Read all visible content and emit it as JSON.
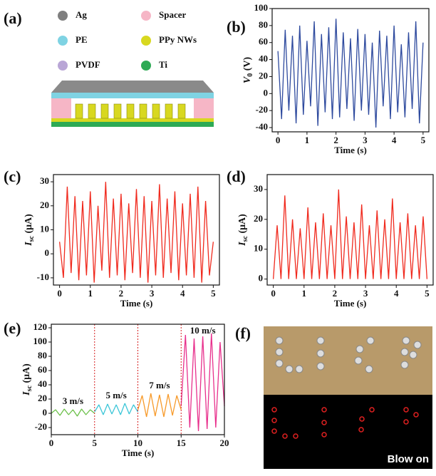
{
  "panels": [
    "(a)",
    "(b)",
    "(c)",
    "(d)",
    "(e)",
    "(f)"
  ],
  "diagram": {
    "legend": [
      {
        "label": "Ag",
        "color": "#7f7f7f"
      },
      {
        "label": "PE",
        "color": "#7fd3e3"
      },
      {
        "label": "PVDF",
        "color": "#b9a6d6"
      },
      {
        "label": "Spacer",
        "color": "#f6b6c6"
      },
      {
        "label": "PPy NWs",
        "color": "#d8d820"
      },
      {
        "label": "Ti",
        "color": "#2eaa55"
      }
    ]
  },
  "photo": {
    "caption": "Blow on"
  },
  "chart_data": [
    {
      "type": "line",
      "x_label": "Time (s)",
      "y_label": "V",
      "y_label_sub": "0",
      "y_label_unit": " (V)",
      "xlim": [
        -0.2,
        5.2
      ],
      "xticks": [
        0,
        1,
        2,
        3,
        4,
        5
      ],
      "ylim": [
        -45,
        100
      ],
      "yticks": [
        -40,
        -20,
        0,
        20,
        40,
        60,
        80,
        100
      ],
      "x": [
        0,
        0.125,
        0.25,
        0.375,
        0.5,
        0.625,
        0.75,
        0.875,
        1,
        1.125,
        1.25,
        1.375,
        1.5,
        1.625,
        1.75,
        1.875,
        2,
        2.125,
        2.25,
        2.375,
        2.5,
        2.625,
        2.75,
        2.875,
        3,
        3.125,
        3.25,
        3.375,
        3.5,
        3.625,
        3.75,
        3.875,
        4,
        4.125,
        4.25,
        4.375,
        4.5,
        4.625,
        4.75,
        4.875,
        5
      ],
      "series": [
        {
          "color": "#2e4a9e",
          "values": [
            50,
            -30,
            75,
            -20,
            68,
            -35,
            80,
            -25,
            62,
            -15,
            85,
            -38,
            70,
            -22,
            78,
            -30,
            88,
            -28,
            72,
            -18,
            65,
            -32,
            76,
            -20,
            70,
            -25,
            60,
            -40,
            74,
            -15,
            68,
            -30,
            80,
            -22,
            58,
            -28,
            72,
            -18,
            85,
            -35,
            60
          ]
        }
      ]
    },
    {
      "type": "line",
      "x_label": "Time (s)",
      "y_label": "I",
      "y_label_sub": "sc",
      "y_label_unit": " (μA)",
      "xlim": [
        -0.2,
        5.2
      ],
      "xticks": [
        0,
        1,
        2,
        3,
        4,
        5
      ],
      "ylim": [
        -13,
        33
      ],
      "yticks": [
        -10,
        0,
        10,
        20,
        30
      ],
      "x": [
        0,
        0.125,
        0.25,
        0.375,
        0.5,
        0.625,
        0.75,
        0.875,
        1,
        1.125,
        1.25,
        1.375,
        1.5,
        1.625,
        1.75,
        1.875,
        2,
        2.125,
        2.25,
        2.375,
        2.5,
        2.625,
        2.75,
        2.875,
        3,
        3.125,
        3.25,
        3.375,
        3.5,
        3.625,
        3.75,
        3.875,
        4,
        4.125,
        4.25,
        4.375,
        4.5,
        4.625,
        4.75,
        4.875,
        5
      ],
      "series": [
        {
          "color": "#f02a1e",
          "values": [
            5,
            -10,
            28,
            -8,
            24,
            -11,
            22,
            -9,
            26,
            -12,
            20,
            -7,
            30,
            -10,
            23,
            -9,
            25,
            -11,
            21,
            -8,
            27,
            -10,
            24,
            -12,
            22,
            -9,
            29,
            -10,
            23,
            -8,
            26,
            -11,
            21,
            -9,
            25,
            -10,
            28,
            -12,
            22,
            -9,
            5
          ]
        }
      ]
    },
    {
      "type": "line",
      "x_label": "Time (s)",
      "y_label": "I",
      "y_label_sub": "sc",
      "y_label_unit": " (μA)",
      "xlim": [
        -0.2,
        5.2
      ],
      "xticks": [
        0,
        1,
        2,
        3,
        4,
        5
      ],
      "ylim": [
        -2,
        35
      ],
      "yticks": [
        0,
        10,
        20,
        30
      ],
      "x": [
        0,
        0.125,
        0.25,
        0.375,
        0.5,
        0.625,
        0.75,
        0.875,
        1,
        1.125,
        1.25,
        1.375,
        1.5,
        1.625,
        1.75,
        1.875,
        2,
        2.125,
        2.25,
        2.375,
        2.5,
        2.625,
        2.75,
        2.875,
        3,
        3.125,
        3.25,
        3.375,
        3.5,
        3.625,
        3.75,
        3.875,
        4,
        4.125,
        4.25,
        4.375,
        4.5,
        4.625,
        4.75,
        4.875,
        5
      ],
      "series": [
        {
          "color": "#f02a1e",
          "values": [
            0,
            18,
            0,
            28,
            0,
            20,
            0,
            17,
            0,
            24,
            0,
            19,
            0,
            22,
            0,
            18,
            0,
            30,
            0,
            21,
            0,
            19,
            0,
            25,
            0,
            18,
            0,
            23,
            0,
            20,
            0,
            27,
            0,
            19,
            0,
            22,
            0,
            18,
            0,
            21,
            0
          ]
        }
      ]
    },
    {
      "type": "line",
      "x_label": "Time (s)",
      "y_label": "I",
      "y_label_sub": "sc",
      "y_label_unit": " (μA)",
      "xlim": [
        0,
        20
      ],
      "xticks": [
        0,
        5,
        10,
        15,
        20
      ],
      "ylim": [
        -30,
        125
      ],
      "yticks": [
        -20,
        0,
        20,
        40,
        60,
        80,
        100,
        120
      ],
      "vlines": [
        5,
        10,
        15
      ],
      "vline_color": "#d62020",
      "series": [
        {
          "name": "3 m/s",
          "color": "#6cc04a",
          "x": [
            0,
            0.5,
            1,
            1.5,
            2,
            2.5,
            3,
            3.5,
            4,
            4.5,
            5
          ],
          "values": [
            0,
            5,
            -3,
            6,
            -2,
            5,
            -4,
            6,
            -2,
            5,
            0
          ]
        },
        {
          "name": "5 m/s",
          "color": "#3cc6d8",
          "x": [
            5,
            5.5,
            6,
            6.5,
            7,
            7.5,
            8,
            8.5,
            9,
            9.5,
            10
          ],
          "values": [
            2,
            12,
            -2,
            13,
            -1,
            12,
            -2,
            14,
            -1,
            12,
            2
          ]
        },
        {
          "name": "7 m/s",
          "color": "#f79a2a",
          "x": [
            10,
            10.5,
            11,
            11.5,
            12,
            12.5,
            13,
            13.5,
            14,
            14.5,
            15
          ],
          "values": [
            5,
            25,
            -5,
            28,
            -4,
            26,
            -5,
            27,
            -3,
            25,
            5
          ]
        },
        {
          "name": "10 m/s",
          "color": "#e8308c",
          "x": [
            15,
            15.5,
            16,
            16.5,
            17,
            17.5,
            18,
            18.5,
            19,
            19.5,
            20
          ],
          "values": [
            10,
            110,
            -20,
            105,
            -25,
            108,
            -22,
            112,
            -20,
            100,
            10
          ]
        }
      ]
    }
  ]
}
